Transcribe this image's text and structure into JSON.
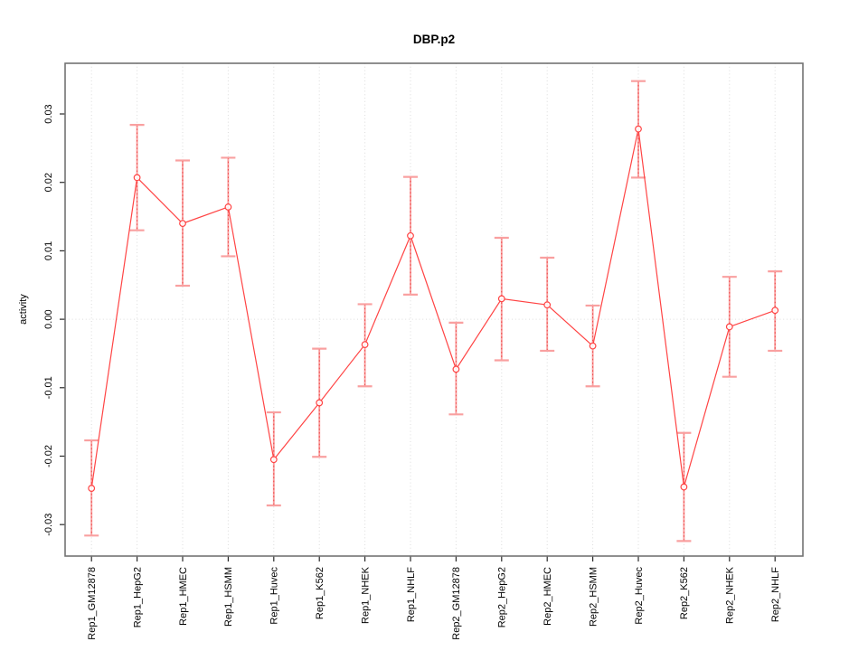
{
  "page": {
    "background_color": "#ffffff"
  },
  "chart_data": {
    "type": "line",
    "title": "DBP.p2",
    "xlabel": "",
    "ylabel": "activity",
    "marker": "open-circle",
    "legend": "none",
    "categories": [
      "Rep1_GM12878",
      "Rep1_HepG2",
      "Rep1_HMEC",
      "Rep1_HSMM",
      "Rep1_Huvec",
      "Rep1_K562",
      "Rep1_NHEK",
      "Rep1_NHLF",
      "Rep2_GM12878",
      "Rep2_HepG2",
      "Rep2_HMEC",
      "Rep2_HSMM",
      "Rep2_Huvec",
      "Rep2_K562",
      "Rep2_NHEK",
      "Rep2_NHLF"
    ],
    "series": [
      {
        "name": "activity",
        "values": [
          -0.0247,
          0.0207,
          0.014,
          0.0164,
          -0.0205,
          -0.0122,
          -0.0037,
          0.0122,
          -0.0073,
          0.003,
          0.0021,
          -0.0039,
          0.0278,
          -0.0245,
          -0.0011,
          0.0013
        ],
        "lower": [
          -0.0316,
          0.013,
          0.0049,
          0.0092,
          -0.0272,
          -0.0201,
          -0.0098,
          0.0036,
          -0.0139,
          -0.006,
          -0.0046,
          -0.0098,
          0.0207,
          -0.0324,
          -0.0084,
          -0.0046
        ],
        "upper": [
          -0.0177,
          0.0284,
          0.0232,
          0.0236,
          -0.0136,
          -0.0043,
          0.0022,
          0.0208,
          -0.0005,
          0.0119,
          0.009,
          0.002,
          0.0348,
          -0.0166,
          0.0062,
          0.007
        ]
      }
    ],
    "yticks": {
      "labels": [
        "0.03",
        "0.02",
        "0.01",
        "0.00",
        "-0.01",
        "-0.02",
        "-0.03"
      ],
      "values": [
        0.03,
        0.02,
        0.01,
        0.0,
        -0.01,
        -0.02,
        -0.03
      ]
    },
    "ylim": [
      -0.0346,
      0.0374
    ],
    "grid": {
      "vertical_dotted_per_category": true,
      "horizontal_zero_line_dotted": true
    },
    "colors": {
      "line": "#ff4444",
      "point": "#ff4444",
      "error_bar": "#f9a0a0",
      "error_bar_overlay": "#ee4444",
      "grid": "#dcdcdc",
      "box": "#737373",
      "tick": "#2a2a2a",
      "text": "#000000",
      "background": "#ffffff"
    }
  }
}
